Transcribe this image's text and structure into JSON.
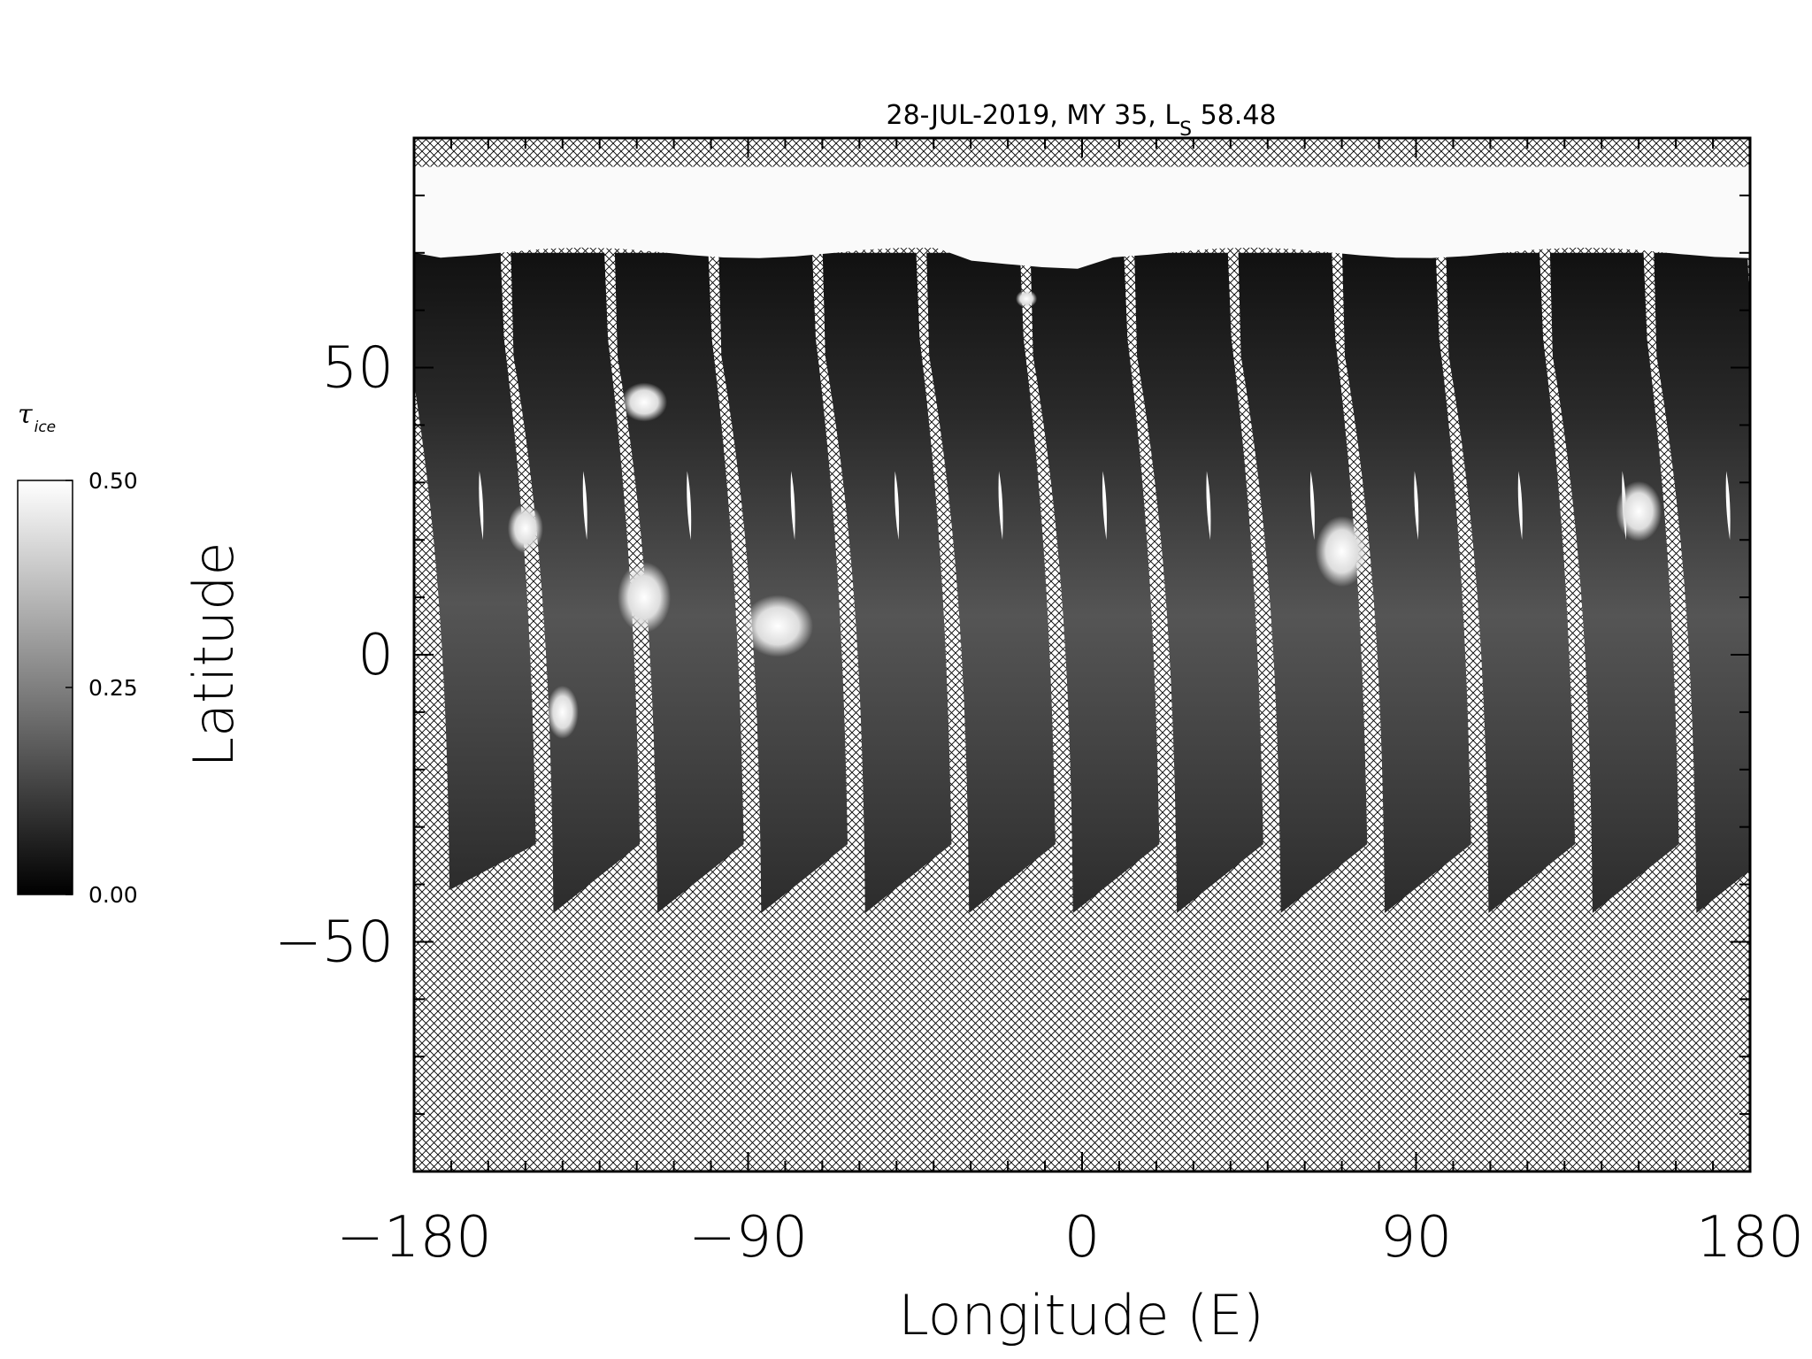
{
  "map": {
    "title_main": "28-JUL-2019, MY 35,  L",
    "title_sub": "S",
    "title_value": " 58.48",
    "projection": "simple cylindrical",
    "background": "hatched (no data)",
    "polar_cap": "bright north polar region"
  },
  "x_axis": {
    "title": "Longitude (E)",
    "range": [
      -180,
      180
    ],
    "ticks": [
      {
        "value": -180,
        "label": "−180"
      },
      {
        "value": -90,
        "label": "−90"
      },
      {
        "value": 0,
        "label": "0"
      },
      {
        "value": 90,
        "label": "90"
      },
      {
        "value": 180,
        "label": "180"
      }
    ]
  },
  "y_axis": {
    "title": "Latitude",
    "range": [
      -90,
      90
    ],
    "ticks": [
      {
        "value": 50,
        "label": "50"
      },
      {
        "value": 0,
        "label": "0"
      },
      {
        "value": -50,
        "label": "−50"
      }
    ]
  },
  "colorbar": {
    "title": "τ",
    "title_sub": "ice",
    "range": [
      0.0,
      0.5
    ],
    "colormap": "grayscale",
    "colors": {
      "low": "#000000",
      "high": "#ffffff"
    },
    "ticks": [
      {
        "value": 0.5,
        "label": "0.50"
      },
      {
        "value": 0.25,
        "label": "0.25"
      },
      {
        "value": 0.0,
        "label": "0.00"
      }
    ]
  },
  "swaths": {
    "count": 13,
    "north_edge_lat": 70,
    "lon_starts": [
      -180,
      -152,
      -124,
      -96,
      -68,
      -40,
      -12,
      16,
      44,
      72,
      100,
      128,
      156
    ]
  },
  "colors": {
    "hatch": "#000000",
    "swath_dark": "#1c1c1c",
    "swath_mid": "#4a4a4a",
    "cloud": "#e8e8e8",
    "polar_cap": "#fafafa"
  }
}
